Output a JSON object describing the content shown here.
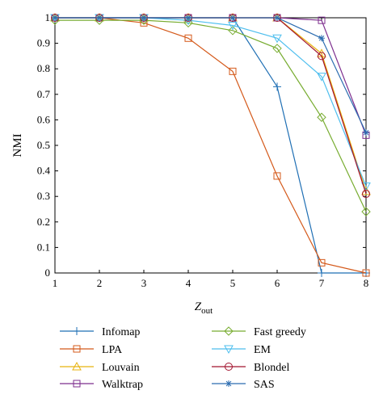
{
  "chart_data": {
    "type": "line",
    "xlabel_main": "Z",
    "xlabel_sub": "out",
    "ylabel": "NMI",
    "xlim": [
      1,
      8
    ],
    "ylim": [
      0,
      1
    ],
    "x": [
      1,
      2,
      3,
      4,
      5,
      6,
      7,
      8
    ],
    "x_ticks": [
      "1",
      "2",
      "3",
      "4",
      "5",
      "6",
      "7",
      "8"
    ],
    "y_ticks": [
      "0",
      "0.1",
      "0.2",
      "0.3",
      "0.4",
      "0.5",
      "0.6",
      "0.7",
      "0.8",
      "0.9",
      "1"
    ],
    "grid": false,
    "legend_position": "bottom",
    "series": [
      {
        "name": "Infomap",
        "color": "#1f6fb4",
        "marker": "plus",
        "values": [
          1,
          1,
          1,
          1,
          1,
          0.73,
          0,
          0
        ]
      },
      {
        "name": "LPA",
        "color": "#d4591a",
        "marker": "square",
        "values": [
          1,
          1,
          0.98,
          0.92,
          0.79,
          0.38,
          0.04,
          0
        ]
      },
      {
        "name": "Louvain",
        "color": "#e8b30e",
        "marker": "triangle-up",
        "values": [
          1,
          1,
          1,
          1,
          1,
          1,
          0.86,
          0.32
        ]
      },
      {
        "name": "Walktrap",
        "color": "#7d2e8e",
        "marker": "square",
        "values": [
          1,
          1,
          1,
          1,
          1,
          1,
          0.99,
          0.54
        ]
      },
      {
        "name": "Fast greedy",
        "color": "#77ac30",
        "marker": "diamond",
        "values": [
          0.99,
          0.99,
          0.99,
          0.98,
          0.95,
          0.88,
          0.61,
          0.24
        ]
      },
      {
        "name": "EM",
        "color": "#4dbeee",
        "marker": "triangle-down",
        "values": [
          1,
          1,
          1,
          0.99,
          0.97,
          0.92,
          0.77,
          0.34
        ]
      },
      {
        "name": "Blondel",
        "color": "#a2142f",
        "marker": "circle",
        "values": [
          1,
          1,
          1,
          1,
          1,
          1,
          0.85,
          0.31
        ]
      },
      {
        "name": "SAS",
        "color": "#2b6cb0",
        "marker": "asterisk",
        "values": [
          1,
          1,
          1,
          1,
          1,
          1,
          0.92,
          0.55
        ]
      }
    ]
  }
}
